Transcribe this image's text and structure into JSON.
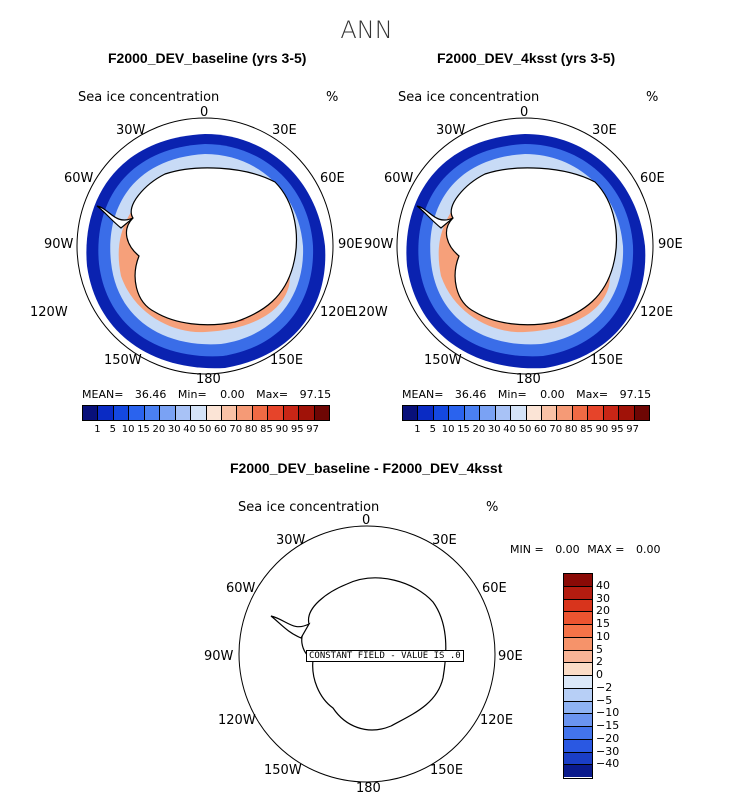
{
  "title": "ANN",
  "panels": [
    {
      "header": "F2000_DEV_baseline (yrs 3-5)",
      "var_label": "Sea ice concentration",
      "units": "%",
      "stats": {
        "mean_label": "MEAN=",
        "mean": "36.46",
        "min_label": "Min=",
        "min": "0.00",
        "max_label": "Max=",
        "max": "97.15"
      }
    },
    {
      "header": "F2000_DEV_4ksst (yrs 3-5)",
      "var_label": "Sea ice concentration",
      "units": "%",
      "stats": {
        "mean_label": "MEAN=",
        "mean": "36.46",
        "min_label": "Min=",
        "min": "0.00",
        "max_label": "Max=",
        "max": "97.15"
      }
    }
  ],
  "diff": {
    "header": "F2000_DEV_baseline - F2000_DEV_4ksst",
    "var_label": "Sea ice concentration",
    "units": "%",
    "min_label": "MIN =",
    "min": "0.00",
    "max_label": "MAX =",
    "max": "0.00",
    "constant_text": "CONSTANT FIELD - VALUE IS .0"
  },
  "lon_labels": [
    "0",
    "30E",
    "60E",
    "90E",
    "120E",
    "150E",
    "180",
    "150W",
    "120W",
    "90W",
    "60W",
    "30W"
  ],
  "colorbar_ticks": [
    "1",
    "5",
    "10",
    "15",
    "20",
    "30",
    "40",
    "50",
    "60",
    "70",
    "80",
    "85",
    "90",
    "95",
    "97"
  ],
  "colorbar_colors": [
    "#08107a",
    "#0a2bc4",
    "#1448e0",
    "#2a63ee",
    "#4a80f2",
    "#7aa2f4",
    "#a8c2f6",
    "#d4e3f8",
    "#fbe4d6",
    "#f9c2a6",
    "#f59a76",
    "#f06a44",
    "#e6442a",
    "#c82616",
    "#a01208",
    "#6e0604"
  ],
  "diff_colorbar_ticks": [
    "40",
    "30",
    "20",
    "15",
    "10",
    "5",
    "2",
    "0",
    "−2",
    "−5",
    "−10",
    "−15",
    "−20",
    "−30",
    "−40"
  ],
  "diff_colorbar_colors": [
    "#8a0a06",
    "#b41c10",
    "#d8341c",
    "#ec5430",
    "#f57348",
    "#f6936a",
    "#f8b496",
    "#fbdcc6",
    "#dbe8f8",
    "#b7cff6",
    "#8fb3f3",
    "#6a94f0",
    "#4374ec",
    "#2a58e2",
    "#1a3ec6",
    "#0a1a8c"
  ]
}
